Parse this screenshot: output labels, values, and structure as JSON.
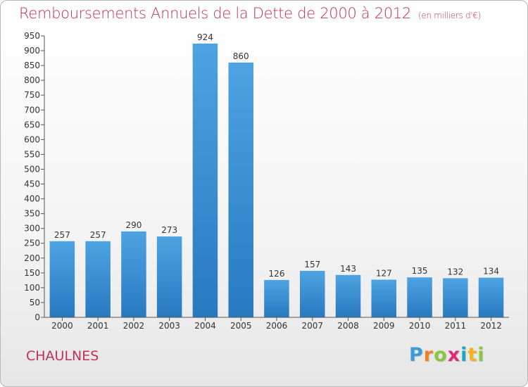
{
  "header": {
    "title": "Remboursements Annuels de la Dette de 2000 à 2012",
    "unit": "(en milliers d'€)"
  },
  "footer": {
    "town": "CHAULNES",
    "logo_letters": [
      "P",
      "r",
      "o",
      "x",
      "i",
      "t",
      "i"
    ],
    "logo_colors": [
      "#3a9bd6",
      "#f07f1f",
      "#8cc63f",
      "#e0297a",
      "#1aa9c4",
      "#f5b21b",
      "#8cc63f"
    ]
  },
  "chart_data": {
    "type": "bar",
    "title": "Remboursements Annuels de la Dette de 2000 à 2012",
    "subtitle": "(en milliers d'€)",
    "xlabel": "",
    "ylabel": "",
    "categories": [
      "2000",
      "2001",
      "2002",
      "2003",
      "2004",
      "2005",
      "2006",
      "2007",
      "2008",
      "2009",
      "2010",
      "2011",
      "2012"
    ],
    "values": [
      257,
      257,
      290,
      273,
      924,
      860,
      126,
      157,
      143,
      127,
      135,
      132,
      134
    ],
    "ylim": [
      0,
      950
    ],
    "ytick_step": 50,
    "grid": false,
    "bar_color": "#4ea3e2",
    "bar_color_dark": "#2879bf",
    "show_value_labels": true
  }
}
